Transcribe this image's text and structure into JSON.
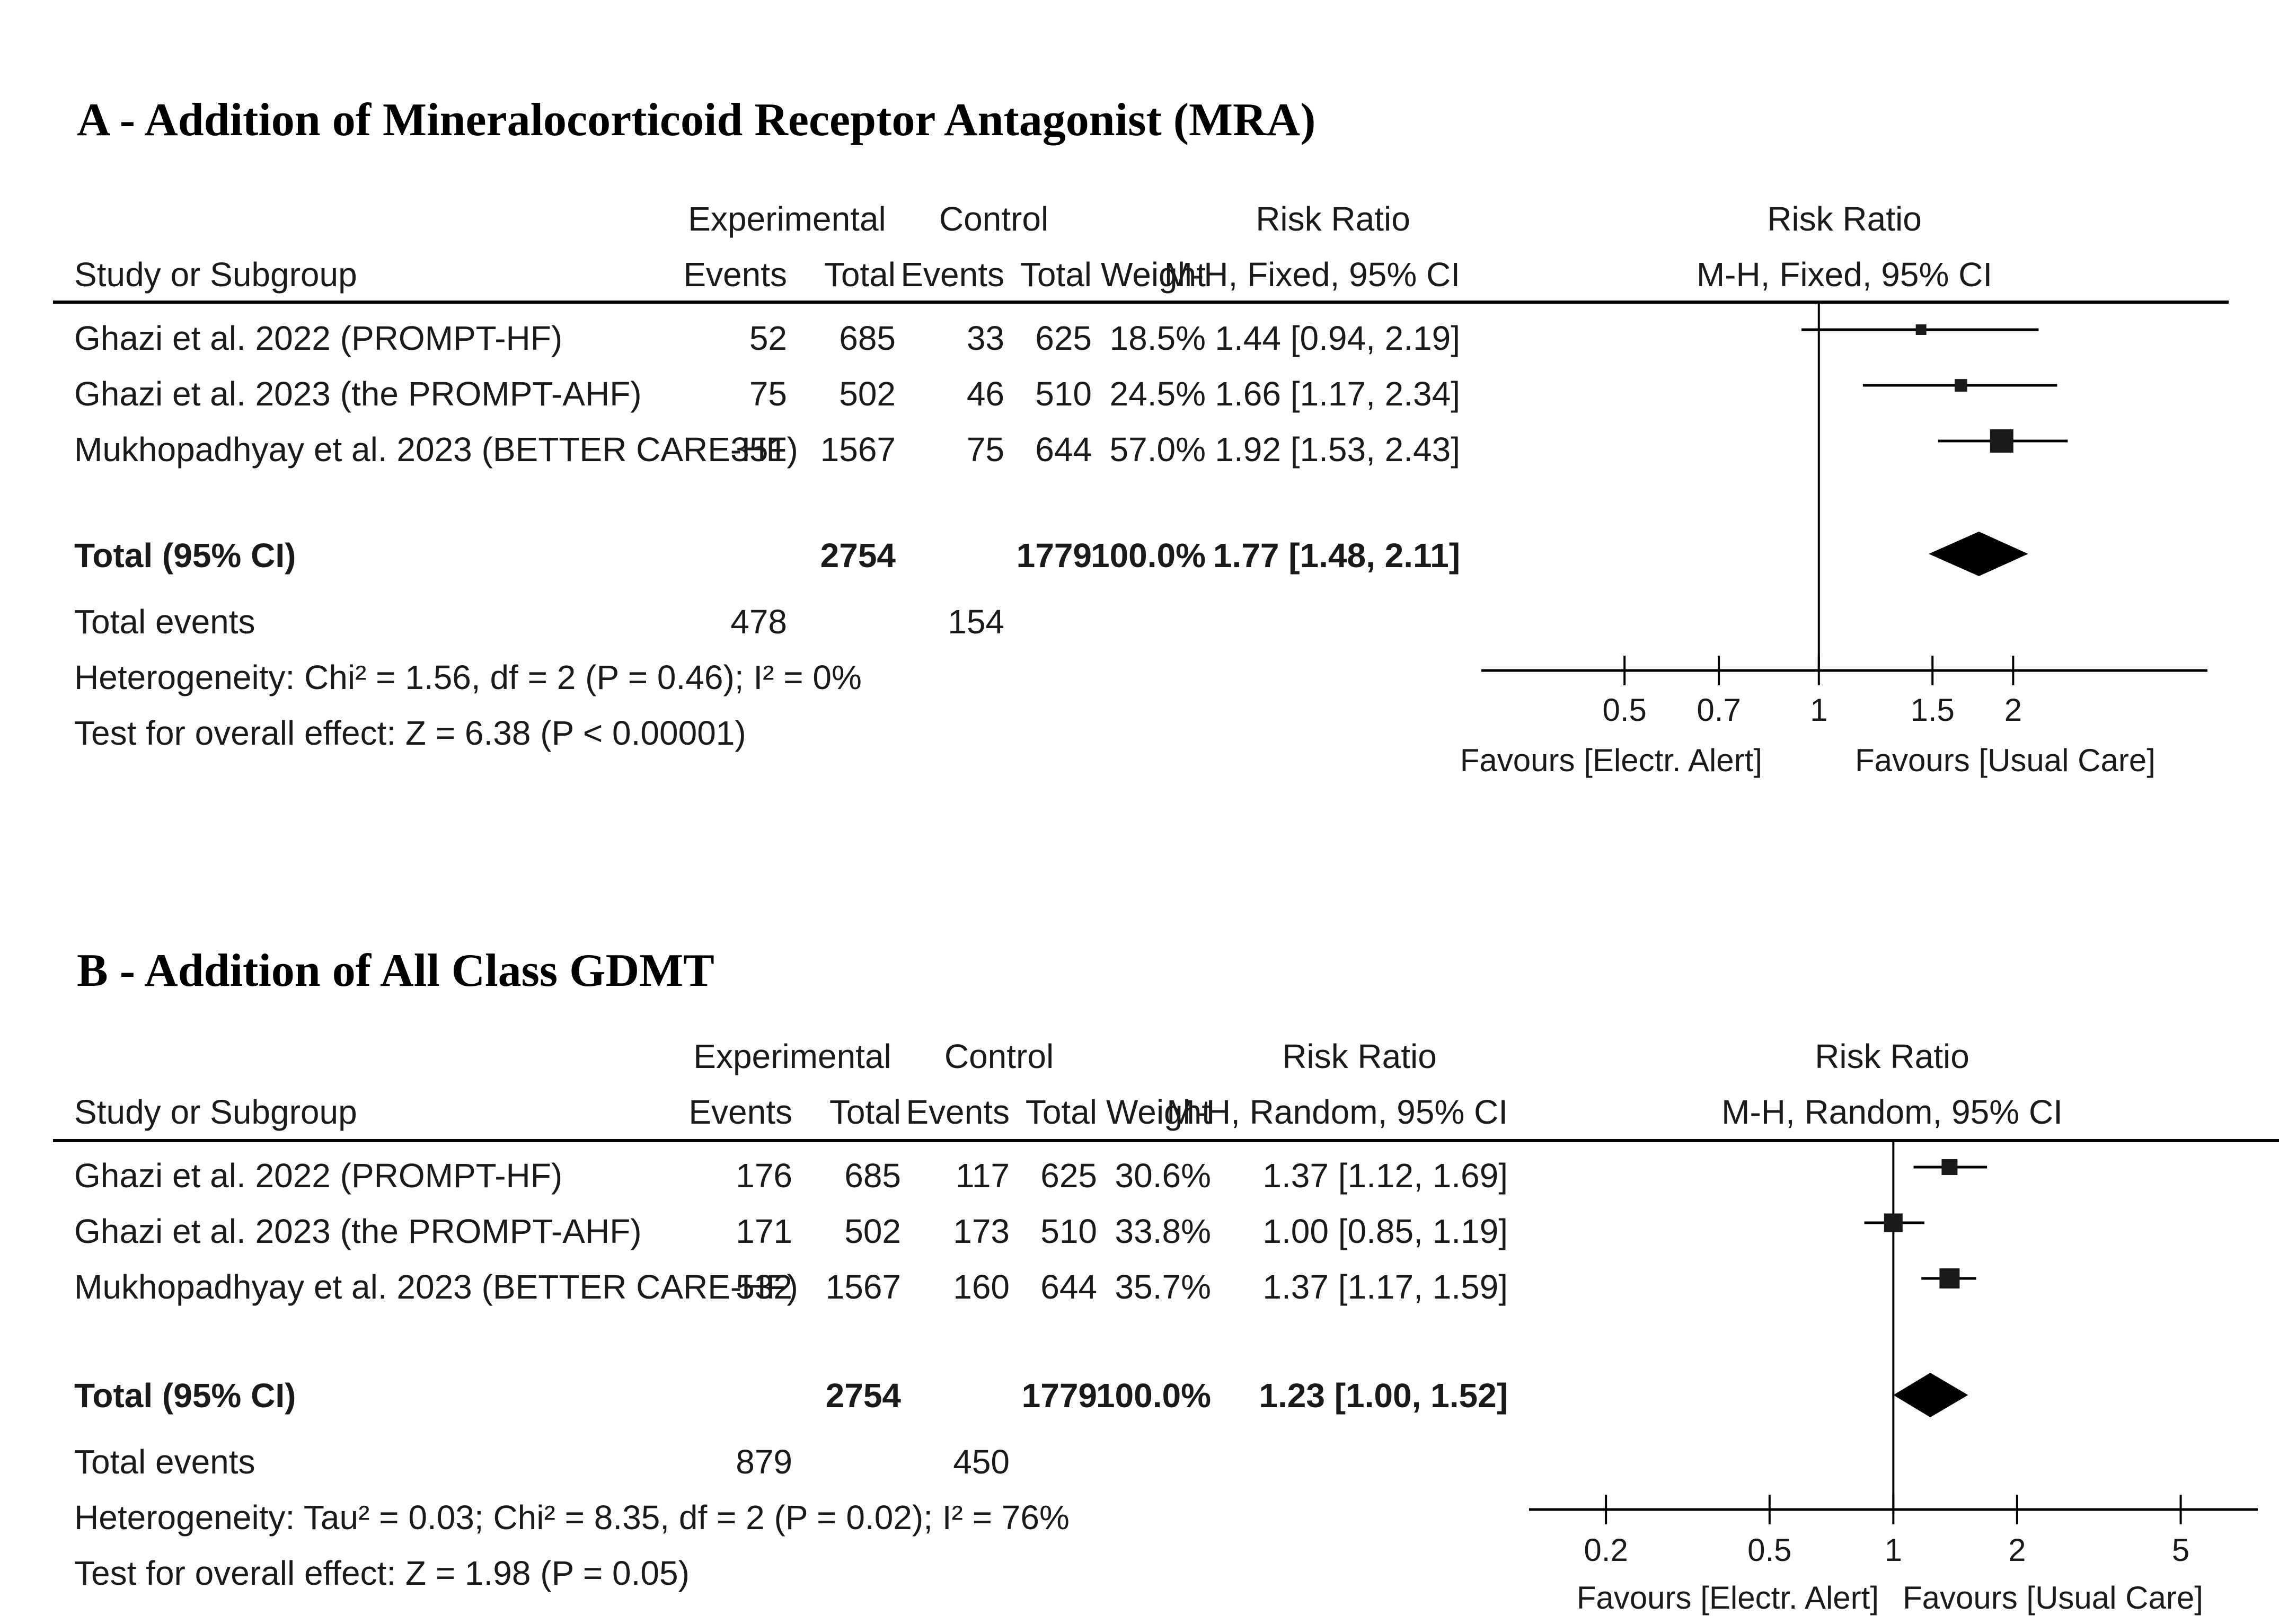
{
  "chart_data": [
    {
      "type": "forest",
      "title": "A -  Addition of Mineralocorticoid Receptor Antagonist (MRA)",
      "header": {
        "experimental": "Experimental",
        "control": "Control",
        "risk_ratio": "Risk Ratio",
        "study": "Study or Subgroup",
        "events": "Events",
        "total": "Total",
        "weight": "Weight",
        "method": "M-H, Fixed, 95% CI"
      },
      "studies": [
        {
          "name": "Ghazi et al. 2022 (PROMPT-HF)",
          "exp_events": "52",
          "exp_total": "685",
          "ctl_events": "33",
          "ctl_total": "625",
          "weight": "18.5%",
          "ci_text": "1.44 [0.94, 2.19]",
          "rr": 1.44,
          "lo": 0.94,
          "hi": 2.19,
          "w": 18.5
        },
        {
          "name": "Ghazi et al. 2023 (the PROMPT-AHF)",
          "exp_events": "75",
          "exp_total": "502",
          "ctl_events": "46",
          "ctl_total": "510",
          "weight": "24.5%",
          "ci_text": "1.66 [1.17, 2.34]",
          "rr": 1.66,
          "lo": 1.17,
          "hi": 2.34,
          "w": 24.5
        },
        {
          "name": "Mukhopadhyay et al. 2023 (BETTER CARE-HF)",
          "exp_events": "351",
          "exp_total": "1567",
          "ctl_events": "75",
          "ctl_total": "644",
          "weight": "57.0%",
          "ci_text": "1.92 [1.53, 2.43]",
          "rr": 1.92,
          "lo": 1.53,
          "hi": 2.43,
          "w": 57.0
        }
      ],
      "total": {
        "label": "Total (95% CI)",
        "exp_total": "2754",
        "ctl_total": "1779",
        "weight": "100.0%",
        "ci_text": "1.77 [1.48, 2.11]",
        "rr": 1.77,
        "lo": 1.48,
        "hi": 2.11
      },
      "total_events": {
        "label": "Total events",
        "exp": "478",
        "ctl": "154"
      },
      "heterogeneity": "Heterogeneity: Chi² = 1.56, df = 2 (P = 0.46); I² = 0%",
      "overall_effect": "Test for overall effect: Z = 6.38 (P < 0.00001)",
      "axis": {
        "scale": "log",
        "range": [
          0.3,
          4
        ],
        "ticks": [
          "0.5",
          "0.7",
          "1",
          "1.5",
          "2"
        ],
        "tick_values": [
          0.5,
          0.7,
          1,
          1.5,
          2
        ]
      },
      "favours_left": "Favours [Electr. Alert]",
      "favours_right": "Favours [Usual Care]"
    },
    {
      "type": "forest",
      "title": "B - Addition of All Class GDMT",
      "header": {
        "experimental": "Experimental",
        "control": "Control",
        "risk_ratio": "Risk Ratio",
        "study": "Study or Subgroup",
        "events": "Events",
        "total": "Total",
        "weight": "Weight",
        "method": "M-H, Random, 95% CI"
      },
      "studies": [
        {
          "name": "Ghazi et al. 2022 (PROMPT-HF)",
          "exp_events": "176",
          "exp_total": "685",
          "ctl_events": "117",
          "ctl_total": "625",
          "weight": "30.6%",
          "ci_text": "1.37 [1.12, 1.69]",
          "rr": 1.37,
          "lo": 1.12,
          "hi": 1.69,
          "w": 30.6
        },
        {
          "name": "Ghazi et al. 2023 (the PROMPT-AHF)",
          "exp_events": "171",
          "exp_total": "502",
          "ctl_events": "173",
          "ctl_total": "510",
          "weight": "33.8%",
          "ci_text": "1.00 [0.85, 1.19]",
          "rr": 1.0,
          "lo": 0.85,
          "hi": 1.19,
          "w": 33.8
        },
        {
          "name": "Mukhopadhyay et al. 2023 (BETTER CARE-HF)",
          "exp_events": "532",
          "exp_total": "1567",
          "ctl_events": "160",
          "ctl_total": "644",
          "weight": "35.7%",
          "ci_text": "1.37 [1.17, 1.59]",
          "rr": 1.37,
          "lo": 1.17,
          "hi": 1.59,
          "w": 35.7
        }
      ],
      "total": {
        "label": "Total (95% CI)",
        "exp_total": "2754",
        "ctl_total": "1779",
        "weight": "100.0%",
        "ci_text": "1.23 [1.00, 1.52]",
        "rr": 1.23,
        "lo": 1.0,
        "hi": 1.52
      },
      "total_events": {
        "label": "Total events",
        "exp": "879",
        "ctl": "450"
      },
      "heterogeneity": "Heterogeneity: Tau² = 0.03; Chi² = 8.35, df = 2 (P = 0.02); I² = 76%",
      "overall_effect": "Test for overall effect: Z = 1.98 (P = 0.05)",
      "axis": {
        "scale": "log",
        "range": [
          0.13,
          7.7
        ],
        "ticks": [
          "0.2",
          "0.5",
          "1",
          "2",
          "5"
        ],
        "tick_values": [
          0.2,
          0.5,
          1,
          2,
          5
        ]
      },
      "favours_left": "Favours [Electr. Alert]",
      "favours_right": "Favours [Usual Care]"
    }
  ]
}
